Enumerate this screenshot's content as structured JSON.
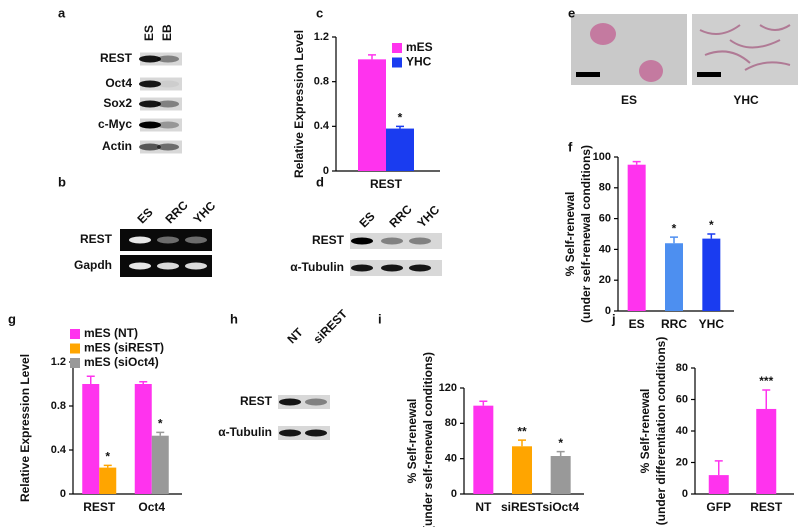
{
  "panel_letters": [
    "a",
    "b",
    "c",
    "d",
    "e",
    "f",
    "g",
    "h",
    "i",
    "j"
  ],
  "blots": [
    {
      "lanes": [
        "ES",
        "EB"
      ],
      "rows": [
        "REST",
        "Oct4",
        "Sox2",
        "c-Myc",
        "Actin"
      ]
    },
    {
      "lanes": [
        "ES",
        "RRC",
        "YHC"
      ],
      "rows": [
        "REST",
        "Gapdh"
      ]
    },
    {
      "lanes": [
        "ES",
        "RRC",
        "YHC"
      ],
      "rows": [
        "REST",
        "α-Tubulin"
      ]
    },
    {
      "lanes": [
        "NT",
        "siREST"
      ],
      "rows": [
        "REST",
        "α-Tubulin"
      ]
    }
  ],
  "micrographs": [
    "ES",
    "YHC"
  ],
  "chart_data": [
    {
      "type": "bar",
      "ylabel": [
        "Relative Expression Level"
      ],
      "categories": [
        "REST"
      ],
      "series": [
        {
          "name": "mES",
          "color": "#ff33ee",
          "values": [
            1.0
          ],
          "errors": [
            0.04
          ],
          "significance": [
            null
          ]
        },
        {
          "name": "YHC",
          "color": "#1a3cf0",
          "values": [
            0.38
          ],
          "errors": [
            0.02
          ],
          "significance": [
            "*"
          ]
        }
      ],
      "ylim": [
        0,
        1.2
      ],
      "yticks": [
        0,
        0.4,
        0.8,
        1.2
      ]
    },
    {
      "type": "bar",
      "ylabel": [
        "% Self-renewal",
        "(under self-renewal conditions)"
      ],
      "categories": [
        "ES",
        "RRC",
        "YHC"
      ],
      "values": [
        95,
        44,
        47
      ],
      "errors": [
        2,
        4,
        3
      ],
      "colors": [
        "#ff33ee",
        "#4d8ff0",
        "#1a3cf0"
      ],
      "significance": [
        null,
        "*",
        "*"
      ],
      "ylim": [
        0,
        100
      ],
      "yticks": [
        0,
        20,
        40,
        60,
        80,
        100
      ]
    },
    {
      "type": "bar",
      "ylabel": [
        "Relative Expression Level"
      ],
      "categories": [
        "REST",
        "Oct4"
      ],
      "series": [
        {
          "name": "mES (NT)",
          "color": "#ff33ee",
          "values": [
            1.0,
            1.0
          ],
          "errors": [
            0.07,
            0.02
          ],
          "significance": [
            null,
            null
          ]
        },
        {
          "name": "mES (siREST)",
          "color": "#ffa500",
          "values": [
            0.24,
            null
          ],
          "errors": [
            0.02,
            null
          ],
          "significance": [
            "*",
            null
          ]
        },
        {
          "name": "mES (siOct4)",
          "color": "#999999",
          "values": [
            null,
            0.53
          ],
          "errors": [
            null,
            0.03
          ],
          "significance": [
            null,
            "*"
          ]
        }
      ],
      "ylim": [
        0,
        1.2
      ],
      "yticks": [
        0,
        0.4,
        0.8,
        1.2
      ]
    },
    {
      "type": "bar",
      "ylabel": [
        "% Self-renewal",
        "(under self-renewal conditions)"
      ],
      "categories": [
        "NT",
        "siREST",
        "siOct4"
      ],
      "values": [
        100,
        54,
        43
      ],
      "errors": [
        5,
        7,
        5
      ],
      "colors": [
        "#ff33ee",
        "#ffa500",
        "#999999"
      ],
      "significance": [
        null,
        "**",
        "*"
      ],
      "ylim": [
        0,
        120
      ],
      "yticks": [
        0,
        40,
        80,
        120
      ]
    },
    {
      "type": "bar",
      "ylabel": [
        "% Self-renewal",
        "(under differentiation conditions)"
      ],
      "categories": [
        "GFP",
        "REST"
      ],
      "values": [
        12,
        54
      ],
      "errors": [
        9,
        12
      ],
      "colors": [
        "#ff33ee",
        "#ff33ee"
      ],
      "significance": [
        null,
        "***"
      ],
      "ylim": [
        0,
        80
      ],
      "yticks": [
        0,
        20,
        40,
        60,
        80
      ]
    }
  ]
}
